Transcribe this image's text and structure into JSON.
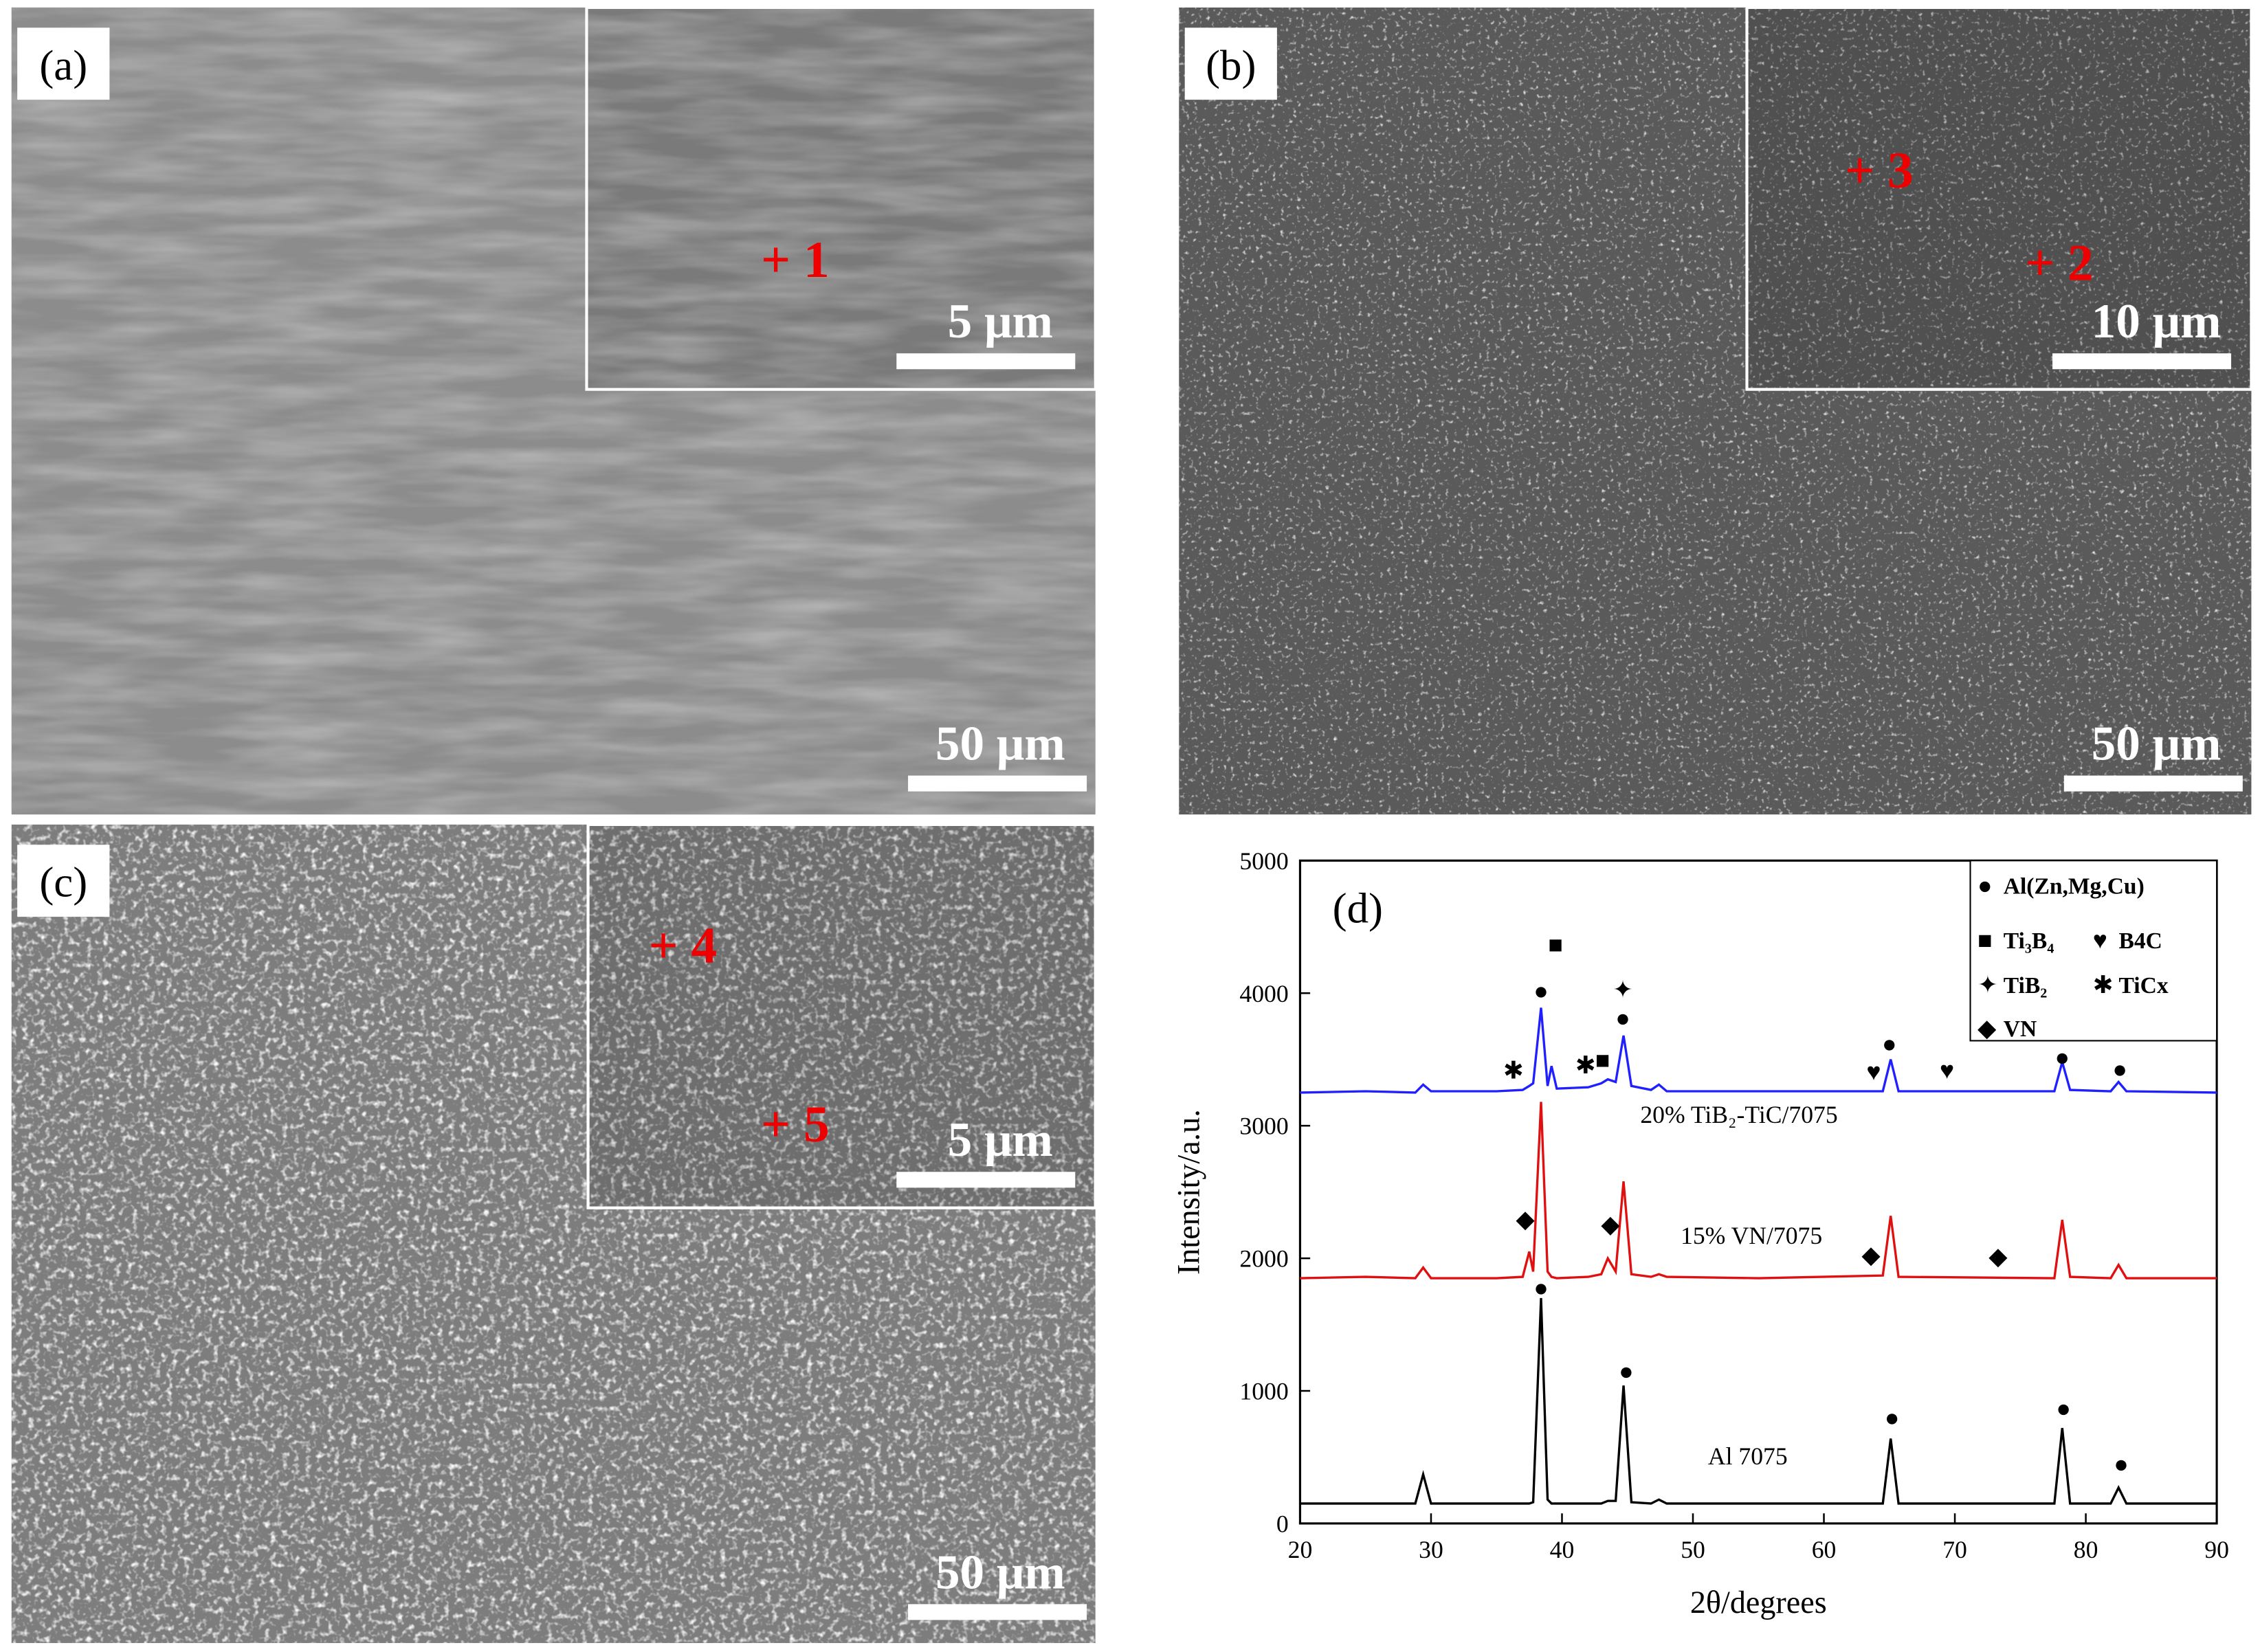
{
  "panels": [
    {
      "label": "(a)",
      "scale": "50 μm",
      "inset_scale": "5 μm",
      "points": [
        "+ 1"
      ]
    },
    {
      "label": "(b)",
      "scale": "50 μm",
      "inset_scale": "10 μm",
      "points": [
        "+ 3",
        "+ 2"
      ]
    },
    {
      "label": "(c)",
      "scale": "50 μm",
      "inset_scale": "5 μm",
      "points": [
        "+ 4",
        "+ 5"
      ]
    }
  ],
  "chart_data": {
    "type": "line",
    "panel_label": "(d)",
    "xlabel": "2θ/degrees",
    "ylabel": "Intensity/a.u.",
    "x": [
      20,
      25,
      28.8,
      29.4,
      30,
      35,
      37,
      37.5,
      37.8,
      38.4,
      38.9,
      39.2,
      39.6,
      42,
      43,
      43.5,
      44.1,
      44.7,
      45.3,
      46.8,
      47.4,
      48,
      55,
      64.5,
      65.1,
      65.7,
      77.6,
      78.2,
      78.8,
      81.9,
      82.5,
      83.1,
      90
    ],
    "series": [
      {
        "name": "20% TiB₂-TiC/7075",
        "color": "#1f1fff",
        "values": [
          3250,
          3260,
          3250,
          3310,
          3260,
          3260,
          3270,
          3300,
          3320,
          3890,
          3300,
          3450,
          3280,
          3290,
          3320,
          3350,
          3330,
          3680,
          3300,
          3270,
          3310,
          3260,
          3260,
          3260,
          3500,
          3260,
          3260,
          3480,
          3270,
          3260,
          3330,
          3260,
          3250
        ]
      },
      {
        "name": "15% VN/7075",
        "color": "#e01010",
        "values": [
          1850,
          1860,
          1850,
          1930,
          1850,
          1850,
          1860,
          2050,
          1900,
          3180,
          1900,
          1860,
          1850,
          1860,
          1880,
          2000,
          1900,
          2580,
          1880,
          1860,
          1880,
          1860,
          1850,
          1870,
          2320,
          1860,
          1850,
          2290,
          1860,
          1850,
          1950,
          1850,
          1850
        ]
      },
      {
        "name": "Al 7075",
        "color": "#000000",
        "values": [
          150,
          150,
          150,
          370,
          150,
          150,
          150,
          150,
          160,
          1700,
          180,
          150,
          150,
          150,
          150,
          170,
          170,
          1040,
          160,
          150,
          180,
          150,
          150,
          150,
          640,
          150,
          150,
          720,
          150,
          150,
          270,
          150,
          150
        ]
      }
    ],
    "xlim": [
      20,
      90
    ],
    "xticks": [
      20,
      30,
      40,
      50,
      60,
      70,
      80,
      90
    ],
    "ylim": [
      0,
      5000
    ],
    "yticks": [
      0,
      1000,
      2000,
      3000,
      4000,
      5000
    ],
    "legend_position": "upper right",
    "legend": [
      {
        "symbol": "●",
        "label": "Al(Zn,Mg,Cu)"
      },
      {
        "symbol": "■",
        "label": "Ti₃B₄"
      },
      {
        "symbol": "♥",
        "label": "B4C"
      },
      {
        "symbol": "✦",
        "label": "TiB₂"
      },
      {
        "symbol": "✱",
        "label": "TiCx"
      },
      {
        "symbol": "◆",
        "label": "VN"
      }
    ],
    "phase_marks": [
      {
        "symbol": "●",
        "x": 38.4,
        "y": 4020
      },
      {
        "symbol": "■",
        "x": 39.5,
        "y": 4370
      },
      {
        "symbol": "✦",
        "x": 44.65,
        "y": 4030
      },
      {
        "symbol": "●",
        "x": 44.65,
        "y": 3815
      },
      {
        "symbol": "✱",
        "x": 36.3,
        "y": 3420
      },
      {
        "symbol": "✱",
        "x": 41.8,
        "y": 3460
      },
      {
        "symbol": "■",
        "x": 43.1,
        "y": 3500
      },
      {
        "symbol": "♥",
        "x": 63.8,
        "y": 3410
      },
      {
        "symbol": "♥",
        "x": 69.4,
        "y": 3420
      },
      {
        "symbol": "●",
        "x": 65.0,
        "y": 3620
      },
      {
        "symbol": "●",
        "x": 78.2,
        "y": 3520
      },
      {
        "symbol": "●",
        "x": 82.6,
        "y": 3430
      },
      {
        "symbol": "◆",
        "x": 37.2,
        "y": 2300
      },
      {
        "symbol": "◆",
        "x": 43.7,
        "y": 2260
      },
      {
        "symbol": "◆",
        "x": 63.6,
        "y": 2030
      },
      {
        "symbol": "◆",
        "x": 73.3,
        "y": 2020
      },
      {
        "symbol": "●",
        "x": 38.4,
        "y": 1780
      },
      {
        "symbol": "●",
        "x": 44.9,
        "y": 1150
      },
      {
        "symbol": "●",
        "x": 65.2,
        "y": 800
      },
      {
        "symbol": "●",
        "x": 78.3,
        "y": 870
      },
      {
        "symbol": "●",
        "x": 82.7,
        "y": 450
      }
    ]
  }
}
